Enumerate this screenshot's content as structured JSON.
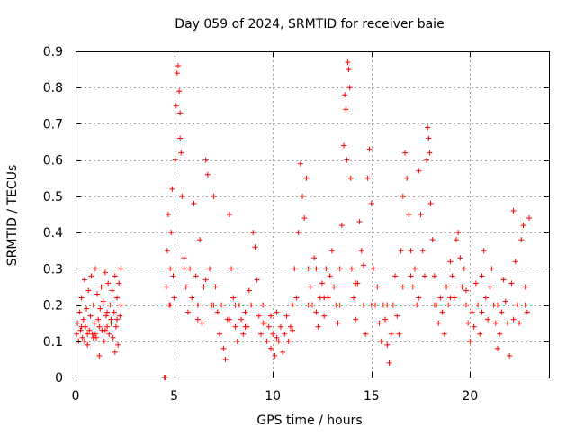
{
  "chart_data": {
    "type": "scatter",
    "title": "Day 059 of 2024, SRMTID for receiver baie",
    "xlabel": "GPS time / hours",
    "ylabel": "SRMTID / TECUs",
    "xlim": [
      0,
      24
    ],
    "ylim": [
      0,
      0.9
    ],
    "xticks": [
      0,
      5,
      10,
      15,
      20
    ],
    "xtick_labels": [
      "0",
      "5",
      "10",
      "15",
      "20"
    ],
    "yticks": [
      0,
      0.1,
      0.2,
      0.3,
      0.4,
      0.5,
      0.6,
      0.7,
      0.8,
      0.9
    ],
    "ytick_labels": [
      "0",
      "0.1",
      "0.2",
      "0.3",
      "0.4",
      "0.5",
      "0.6",
      "0.7",
      "0.8",
      "0.9"
    ],
    "grid": true,
    "marker": "+",
    "color": "#ff0000",
    "series": [
      {
        "name": "SRMTID",
        "points": [
          [
            0.05,
            0.12
          ],
          [
            0.1,
            0.15
          ],
          [
            0.15,
            0.1
          ],
          [
            0.2,
            0.18
          ],
          [
            0.25,
            0.13
          ],
          [
            0.3,
            0.22
          ],
          [
            0.35,
            0.11
          ],
          [
            0.4,
            0.16
          ],
          [
            0.45,
            0.27
          ],
          [
            0.5,
            0.14
          ],
          [
            0.55,
            0.19
          ],
          [
            0.6,
            0.09
          ],
          [
            0.65,
            0.24
          ],
          [
            0.7,
            0.13
          ],
          [
            0.75,
            0.17
          ],
          [
            0.8,
            0.28
          ],
          [
            0.85,
            0.12
          ],
          [
            0.9,
            0.2
          ],
          [
            0.95,
            0.15
          ],
          [
            1.0,
            0.3
          ],
          [
            1.05,
            0.11
          ],
          [
            1.1,
            0.23
          ],
          [
            1.15,
            0.16
          ],
          [
            1.2,
            0.06
          ],
          [
            1.25,
            0.19
          ],
          [
            1.3,
            0.25
          ],
          [
            1.35,
            0.13
          ],
          [
            1.4,
            0.21
          ],
          [
            1.45,
            0.1
          ],
          [
            1.5,
            0.29
          ],
          [
            1.55,
            0.17
          ],
          [
            1.6,
            0.14
          ],
          [
            1.65,
            0.26
          ],
          [
            1.7,
            0.12
          ],
          [
            1.75,
            0.2
          ],
          [
            1.8,
            0.16
          ],
          [
            1.85,
            0.24
          ],
          [
            1.9,
            0.11
          ],
          [
            1.95,
            0.18
          ],
          [
            2.0,
            0.28
          ],
          [
            2.05,
            0.14
          ],
          [
            2.1,
            0.22
          ],
          [
            2.15,
            0.09
          ],
          [
            2.2,
            0.26
          ],
          [
            2.25,
            0.17
          ],
          [
            2.3,
            0.3
          ],
          [
            0.3,
            0.14
          ],
          [
            0.6,
            0.12
          ],
          [
            0.9,
            0.11
          ],
          [
            1.2,
            0.14
          ],
          [
            1.5,
            0.13
          ],
          [
            1.8,
            0.15
          ],
          [
            2.1,
            0.16
          ],
          [
            0.45,
            0.1
          ],
          [
            1.0,
            0.12
          ],
          [
            1.6,
            0.18
          ],
          [
            2.0,
            0.07
          ],
          [
            2.3,
            0.2
          ],
          [
            4.5,
            0.0
          ],
          [
            4.55,
            0.0
          ],
          [
            4.6,
            0.25
          ],
          [
            4.7,
            0.45
          ],
          [
            4.8,
            0.3
          ],
          [
            4.9,
            0.52
          ],
          [
            5.0,
            0.22
          ],
          [
            5.05,
            0.6
          ],
          [
            5.1,
            0.75
          ],
          [
            5.15,
            0.84
          ],
          [
            5.2,
            0.86
          ],
          [
            5.25,
            0.79
          ],
          [
            5.3,
            0.66
          ],
          [
            5.35,
            0.62
          ],
          [
            5.3,
            0.73
          ],
          [
            4.65,
            0.35
          ],
          [
            4.75,
            0.2
          ],
          [
            4.85,
            0.4
          ],
          [
            4.95,
            0.28
          ],
          [
            5.4,
            0.5
          ],
          [
            5.5,
            0.33
          ],
          [
            5.6,
            0.25
          ],
          [
            5.7,
            0.18
          ],
          [
            5.8,
            0.3
          ],
          [
            5.9,
            0.22
          ],
          [
            6.0,
            0.48
          ],
          [
            6.1,
            0.28
          ],
          [
            6.2,
            0.2
          ],
          [
            6.3,
            0.38
          ],
          [
            6.4,
            0.15
          ],
          [
            6.5,
            0.25
          ],
          [
            6.6,
            0.6
          ],
          [
            6.7,
            0.56
          ],
          [
            6.8,
            0.3
          ],
          [
            6.9,
            0.2
          ],
          [
            7.0,
            0.5
          ],
          [
            7.1,
            0.25
          ],
          [
            7.2,
            0.18
          ],
          [
            7.3,
            0.12
          ],
          [
            7.4,
            0.2
          ],
          [
            7.5,
            0.08
          ],
          [
            7.6,
            0.05
          ],
          [
            7.7,
            0.16
          ],
          [
            7.8,
            0.45
          ],
          [
            7.9,
            0.3
          ],
          [
            8.0,
            0.22
          ],
          [
            8.1,
            0.14
          ],
          [
            8.2,
            0.1
          ],
          [
            8.3,
            0.2
          ],
          [
            8.4,
            0.16
          ],
          [
            8.5,
            0.12
          ],
          [
            8.6,
            0.18
          ],
          [
            8.7,
            0.14
          ],
          [
            8.8,
            0.24
          ],
          [
            8.9,
            0.2
          ],
          [
            9.0,
            0.4
          ],
          [
            9.1,
            0.36
          ],
          [
            9.2,
            0.27
          ],
          [
            9.3,
            0.17
          ],
          [
            9.4,
            0.12
          ],
          [
            9.5,
            0.2
          ],
          [
            9.6,
            0.15
          ],
          [
            9.7,
            0.1
          ],
          [
            9.8,
            0.14
          ],
          [
            9.9,
            0.08
          ],
          [
            10.0,
            0.12
          ],
          [
            10.1,
            0.06
          ],
          [
            10.2,
            0.18
          ],
          [
            10.3,
            0.1
          ],
          [
            10.4,
            0.14
          ],
          [
            10.5,
            0.07
          ],
          [
            10.6,
            0.12
          ],
          [
            10.7,
            0.17
          ],
          [
            10.8,
            0.1
          ],
          [
            10.9,
            0.14
          ],
          [
            11.0,
            0.2
          ],
          [
            11.1,
            0.3
          ],
          [
            11.2,
            0.22
          ],
          [
            11.3,
            0.4
          ],
          [
            11.4,
            0.59
          ],
          [
            11.5,
            0.5
          ],
          [
            11.6,
            0.44
          ],
          [
            11.7,
            0.55
          ],
          [
            11.8,
            0.3
          ],
          [
            11.9,
            0.25
          ],
          [
            12.0,
            0.2
          ],
          [
            12.1,
            0.33
          ],
          [
            12.2,
            0.18
          ],
          [
            12.3,
            0.14
          ],
          [
            12.4,
            0.22
          ],
          [
            12.5,
            0.26
          ],
          [
            12.6,
            0.17
          ],
          [
            12.7,
            0.3
          ],
          [
            12.8,
            0.22
          ],
          [
            12.9,
            0.28
          ],
          [
            13.0,
            0.35
          ],
          [
            13.1,
            0.25
          ],
          [
            13.2,
            0.2
          ],
          [
            13.3,
            0.15
          ],
          [
            13.4,
            0.3
          ],
          [
            13.5,
            0.42
          ],
          [
            13.6,
            0.64
          ],
          [
            13.65,
            0.78
          ],
          [
            13.7,
            0.74
          ],
          [
            13.75,
            0.6
          ],
          [
            13.8,
            0.87
          ],
          [
            13.85,
            0.85
          ],
          [
            13.9,
            0.8
          ],
          [
            13.95,
            0.55
          ],
          [
            14.0,
            0.3
          ],
          [
            14.1,
            0.22
          ],
          [
            14.2,
            0.16
          ],
          [
            14.3,
            0.26
          ],
          [
            14.4,
            0.43
          ],
          [
            14.5,
            0.35
          ],
          [
            14.6,
            0.2
          ],
          [
            14.7,
            0.12
          ],
          [
            14.8,
            0.55
          ],
          [
            14.9,
            0.63
          ],
          [
            15.0,
            0.48
          ],
          [
            15.1,
            0.3
          ],
          [
            15.2,
            0.2
          ],
          [
            15.3,
            0.25
          ],
          [
            15.4,
            0.15
          ],
          [
            15.5,
            0.1
          ],
          [
            15.6,
            0.2
          ],
          [
            15.7,
            0.16
          ],
          [
            15.8,
            0.09
          ],
          [
            15.9,
            0.04
          ],
          [
            16.0,
            0.12
          ],
          [
            16.1,
            0.2
          ],
          [
            16.2,
            0.28
          ],
          [
            16.3,
            0.17
          ],
          [
            16.4,
            0.12
          ],
          [
            16.5,
            0.35
          ],
          [
            16.6,
            0.5
          ],
          [
            16.7,
            0.62
          ],
          [
            16.8,
            0.55
          ],
          [
            16.9,
            0.45
          ],
          [
            17.0,
            0.35
          ],
          [
            17.1,
            0.25
          ],
          [
            17.2,
            0.3
          ],
          [
            17.3,
            0.2
          ],
          [
            17.4,
            0.57
          ],
          [
            17.5,
            0.45
          ],
          [
            17.6,
            0.35
          ],
          [
            17.7,
            0.28
          ],
          [
            17.8,
            0.6
          ],
          [
            17.85,
            0.69
          ],
          [
            17.9,
            0.66
          ],
          [
            17.95,
            0.62
          ],
          [
            18.0,
            0.48
          ],
          [
            18.1,
            0.38
          ],
          [
            18.2,
            0.28
          ],
          [
            18.3,
            0.2
          ],
          [
            18.4,
            0.15
          ],
          [
            18.5,
            0.22
          ],
          [
            18.6,
            0.18
          ],
          [
            18.7,
            0.12
          ],
          [
            18.8,
            0.25
          ],
          [
            18.9,
            0.2
          ],
          [
            19.0,
            0.32
          ],
          [
            19.1,
            0.28
          ],
          [
            19.2,
            0.22
          ],
          [
            19.3,
            0.38
          ],
          [
            19.4,
            0.4
          ],
          [
            19.5,
            0.33
          ],
          [
            19.6,
            0.25
          ],
          [
            19.7,
            0.3
          ],
          [
            19.8,
            0.2
          ],
          [
            19.9,
            0.15
          ],
          [
            20.0,
            0.1
          ],
          [
            20.1,
            0.18
          ],
          [
            20.2,
            0.14
          ],
          [
            20.3,
            0.26
          ],
          [
            20.4,
            0.2
          ],
          [
            20.5,
            0.12
          ],
          [
            20.6,
            0.28
          ],
          [
            20.7,
            0.35
          ],
          [
            20.8,
            0.22
          ],
          [
            20.9,
            0.16
          ],
          [
            21.0,
            0.25
          ],
          [
            21.1,
            0.3
          ],
          [
            21.2,
            0.2
          ],
          [
            21.3,
            0.15
          ],
          [
            21.4,
            0.08
          ],
          [
            21.5,
            0.12
          ],
          [
            21.6,
            0.18
          ],
          [
            21.7,
            0.27
          ],
          [
            21.8,
            0.21
          ],
          [
            21.9,
            0.15
          ],
          [
            22.0,
            0.06
          ],
          [
            22.1,
            0.26
          ],
          [
            22.2,
            0.46
          ],
          [
            22.3,
            0.32
          ],
          [
            22.4,
            0.2
          ],
          [
            22.5,
            0.15
          ],
          [
            22.6,
            0.38
          ],
          [
            22.7,
            0.42
          ],
          [
            22.8,
            0.25
          ],
          [
            22.9,
            0.18
          ],
          [
            23.0,
            0.44
          ],
          [
            4.8,
            0.2
          ],
          [
            5.5,
            0.3
          ],
          [
            6.2,
            0.16
          ],
          [
            7.0,
            0.2
          ],
          [
            7.8,
            0.16
          ],
          [
            8.6,
            0.14
          ],
          [
            9.5,
            0.15
          ],
          [
            10.2,
            0.11
          ],
          [
            11.0,
            0.13
          ],
          [
            11.8,
            0.2
          ],
          [
            12.6,
            0.22
          ],
          [
            13.4,
            0.2
          ],
          [
            14.2,
            0.26
          ],
          [
            15.0,
            0.2
          ],
          [
            15.8,
            0.2
          ],
          [
            16.6,
            0.25
          ],
          [
            17.4,
            0.22
          ],
          [
            18.2,
            0.2
          ],
          [
            19.0,
            0.22
          ],
          [
            19.8,
            0.24
          ],
          [
            20.6,
            0.18
          ],
          [
            21.4,
            0.2
          ],
          [
            22.2,
            0.16
          ],
          [
            22.8,
            0.2
          ],
          [
            6.6,
            0.27
          ],
          [
            8.1,
            0.2
          ],
          [
            9.9,
            0.17
          ],
          [
            12.2,
            0.3
          ],
          [
            14.6,
            0.31
          ],
          [
            17.0,
            0.28
          ]
        ]
      }
    ]
  }
}
